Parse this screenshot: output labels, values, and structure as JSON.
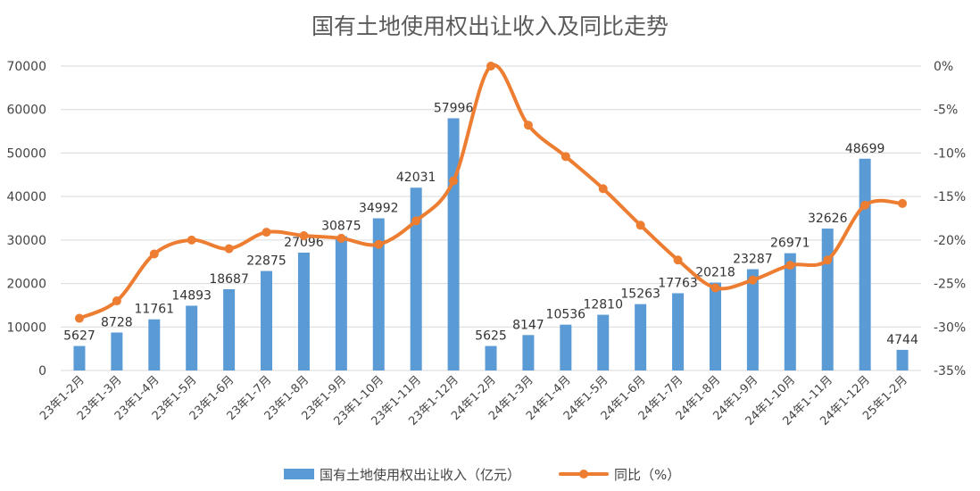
{
  "chart_data": {
    "type": "bar",
    "title": "国有土地使用权出让收入及同比走势",
    "categories": [
      "23年1-2月",
      "23年1-3月",
      "23年1-4月",
      "23年1-5月",
      "23年1-6月",
      "23年1-7月",
      "23年1-8月",
      "23年1-9月",
      "23年1-10月",
      "23年1-11月",
      "23年1-12月",
      "24年1-2月",
      "24年1-3月",
      "24年1-4月",
      "24年1-5月",
      "24年1-6月",
      "24年1-7月",
      "24年1-8月",
      "24年1-9月",
      "24年1-10月",
      "24年1-11月",
      "24年1-12月",
      "25年1-2月"
    ],
    "series": [
      {
        "name": "国有土地使用权出让收入（亿元）",
        "type": "bar",
        "axis": "left",
        "color": "#5b9bd5",
        "values": [
          5627,
          8728,
          11761,
          14893,
          18687,
          22875,
          27096,
          30875,
          34992,
          42031,
          57996,
          5625,
          8147,
          10536,
          12810,
          15263,
          17763,
          20218,
          23287,
          26971,
          32626,
          48699,
          4744
        ],
        "labels": [
          "5627",
          "8728",
          "11761",
          "14893",
          "18687",
          "22875",
          "27096",
          "30875",
          "34992",
          "42031",
          "57996",
          "5625",
          "8147",
          "10536",
          "12810",
          "15263",
          "17763",
          "20218",
          "23287",
          "26971",
          "32626",
          "48699",
          "4744"
        ]
      },
      {
        "name": "同比（%）",
        "type": "line",
        "axis": "right",
        "color": "#ed7d31",
        "values": [
          -29.0,
          -27.0,
          -21.6,
          -20.0,
          -21.0,
          -19.1,
          -19.5,
          -19.8,
          -20.5,
          -17.8,
          -13.2,
          0.0,
          -6.8,
          -10.4,
          -14.1,
          -18.3,
          -22.3,
          -25.5,
          -24.6,
          -22.9,
          -22.3,
          -16.0,
          -15.8
        ]
      }
    ],
    "ylim_left": [
      0,
      70000
    ],
    "yticks_left": [
      "0",
      "10000",
      "20000",
      "30000",
      "40000",
      "50000",
      "60000",
      "70000"
    ],
    "ylim_right": [
      -35,
      0
    ],
    "yticks_right": [
      "-35%",
      "-30%",
      "-25%",
      "-20%",
      "-15%",
      "-10%",
      "-5%",
      "0%"
    ],
    "legend_position": "bottom",
    "grid": true
  }
}
